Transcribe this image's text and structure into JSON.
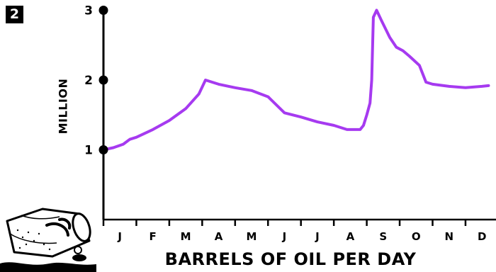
{
  "figure": {
    "number": "2"
  },
  "chart_data": {
    "type": "line",
    "title": "",
    "xlabel": "BARRELS OF OIL PER DAY",
    "ylabel": "MILLION",
    "categories": [
      "J",
      "F",
      "M",
      "A",
      "M",
      "J",
      "J",
      "A",
      "S",
      "O",
      "N",
      "D"
    ],
    "ylim": [
      0,
      3
    ],
    "yticks": [
      1,
      2,
      3
    ],
    "grid": false,
    "legend": "none",
    "series": [
      {
        "color": "#a63af0",
        "points": [
          [
            0.0,
            1.0
          ],
          [
            0.3,
            1.03
          ],
          [
            0.6,
            1.08
          ],
          [
            0.8,
            1.15
          ],
          [
            1.0,
            1.18
          ],
          [
            1.5,
            1.29
          ],
          [
            2.0,
            1.42
          ],
          [
            2.5,
            1.59
          ],
          [
            2.9,
            1.8
          ],
          [
            3.1,
            2.0
          ],
          [
            3.5,
            1.94
          ],
          [
            4.0,
            1.89
          ],
          [
            4.5,
            1.85
          ],
          [
            5.0,
            1.76
          ],
          [
            5.5,
            1.53
          ],
          [
            6.0,
            1.47
          ],
          [
            6.5,
            1.4
          ],
          [
            7.0,
            1.35
          ],
          [
            7.4,
            1.29
          ],
          [
            7.8,
            1.29
          ],
          [
            7.9,
            1.35
          ],
          [
            8.0,
            1.5
          ],
          [
            8.1,
            1.67
          ],
          [
            8.15,
            2.0
          ],
          [
            8.2,
            2.9
          ],
          [
            8.3,
            3.0
          ],
          [
            8.45,
            2.85
          ],
          [
            8.7,
            2.61
          ],
          [
            8.9,
            2.47
          ],
          [
            9.1,
            2.42
          ],
          [
            9.3,
            2.34
          ],
          [
            9.6,
            2.21
          ],
          [
            9.8,
            1.97
          ],
          [
            10.0,
            1.94
          ],
          [
            10.5,
            1.91
          ],
          [
            11.0,
            1.89
          ],
          [
            11.5,
            1.91
          ],
          [
            11.7,
            1.92
          ]
        ]
      }
    ]
  }
}
